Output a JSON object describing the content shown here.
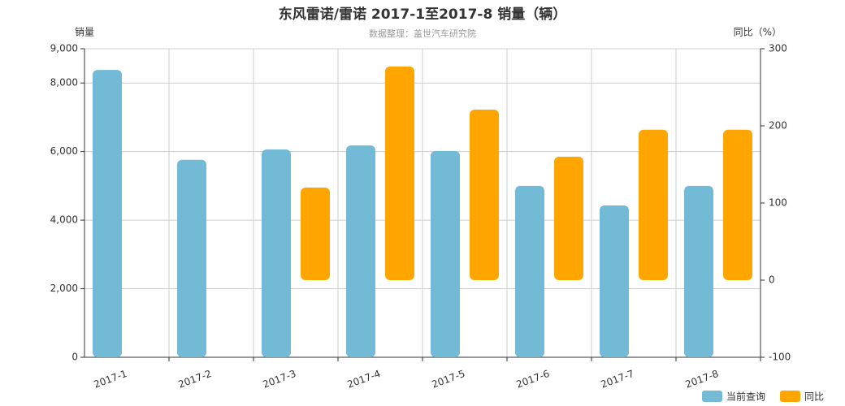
{
  "chart_data": {
    "type": "bar",
    "title": "东风雷诺/雷诺 2017-1至2017-8 销量（辆）",
    "subtitle": "数据整理：盖世汽车研究院",
    "y_label": "销量",
    "y2_label": "同比（%）",
    "categories": [
      "2017-1",
      "2017-2",
      "2017-3",
      "2017-4",
      "2017-5",
      "2017-6",
      "2017-7",
      "2017-8"
    ],
    "series": [
      {
        "name": "当前查询",
        "color": "#72bad6",
        "values": [
          8380,
          5760,
          6060,
          6180,
          6020,
          5000,
          4430,
          5000
        ]
      },
      {
        "name": "同比",
        "color": "#ffa500",
        "axis": "y2",
        "values": [
          null,
          null,
          120,
          277,
          221,
          160,
          195,
          195
        ]
      }
    ],
    "ylim": [
      0,
      9000
    ],
    "yticks": [
      0,
      {
        "value": 2000,
        "label": "2,000"
      },
      {
        "value": 4000,
        "label": "4,000"
      },
      {
        "value": 6000,
        "label": "6,000"
      },
      {
        "value": 8000,
        "label": "8,000"
      },
      {
        "value": 9000,
        "label": "9,000"
      }
    ],
    "y2lim": [
      -100,
      300
    ],
    "y2ticks": [
      -100,
      0,
      100,
      200,
      300
    ],
    "grid": true,
    "legend": "bottom-right"
  }
}
